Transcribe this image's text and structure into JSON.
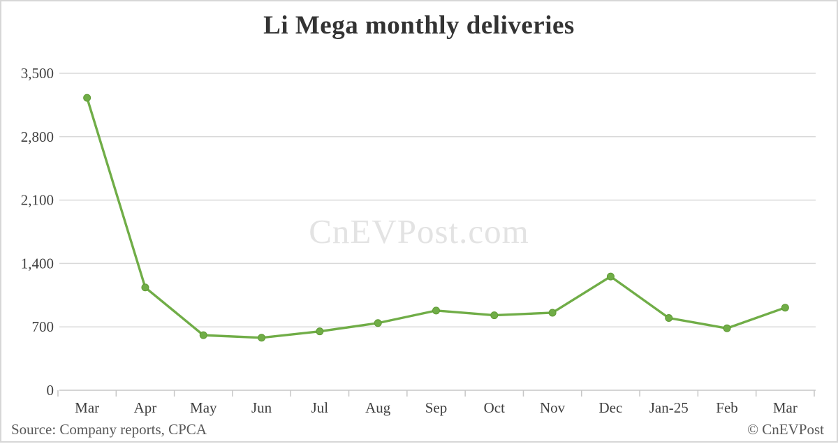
{
  "chart_data": {
    "type": "line",
    "title": "Li Mega monthly deliveries",
    "categories": [
      "Mar",
      "Apr",
      "May",
      "Jun",
      "Jul",
      "Aug",
      "Sep",
      "Oct",
      "Nov",
      "Dec",
      "Jan-25",
      "Feb",
      "Mar"
    ],
    "values": [
      3229,
      1135,
      608,
      580,
      650,
      742,
      880,
      828,
      856,
      1256,
      798,
      684,
      912
    ],
    "series_name": "Li Mega monthly deliveries",
    "xlabel": "",
    "ylabel": "",
    "ylim": [
      0,
      3500
    ],
    "yticks": [
      0,
      700,
      1400,
      2100,
      2800,
      3500
    ],
    "ytick_labels": [
      "0",
      "700",
      "1,400",
      "2,100",
      "2,800",
      "3,500"
    ],
    "grid": "horizontal",
    "legend": "none",
    "marker": "circle"
  },
  "watermark": {
    "text": "CnEVPost.com"
  },
  "footer": {
    "source": "Source: Company reports, CPCA",
    "credit": "© CnEVPost"
  },
  "colors": {
    "line": "#70ad47",
    "marker_fill": "#70ad47",
    "marker_stroke": "#5f9a34",
    "grid": "#d9d9d9",
    "axis": "#c6c6c6",
    "title_text": "#333333",
    "tick_text": "#404040",
    "footer_text": "#595959",
    "watermark_text": "#e3e3e3",
    "frame_border": "#d7d7d7"
  }
}
